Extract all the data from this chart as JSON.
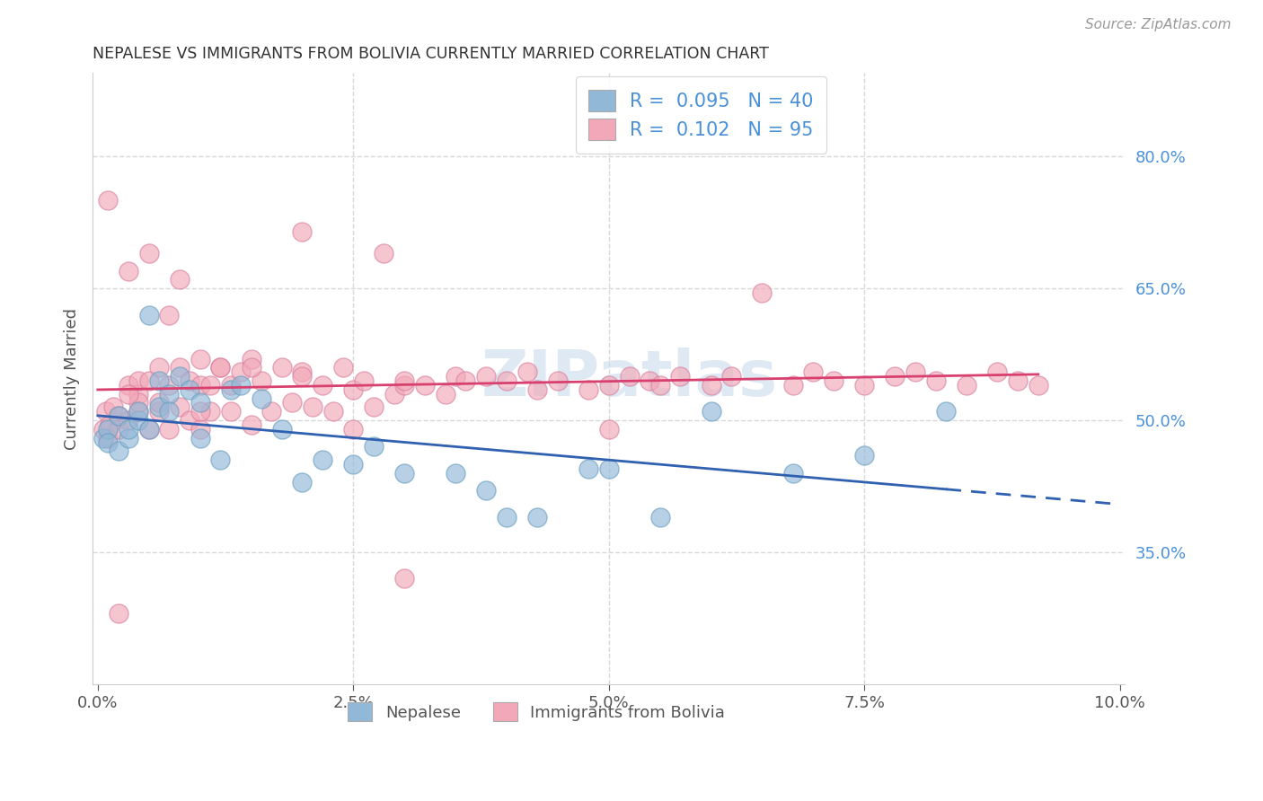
{
  "title": "NEPALESE VS IMMIGRANTS FROM BOLIVIA CURRENTLY MARRIED CORRELATION CHART",
  "source": "Source: ZipAtlas.com",
  "ylabel": "Currently Married",
  "nepalese_color": "#92b8d8",
  "nepalese_edge_color": "#6a9fc0",
  "bolivia_color": "#f2a8b8",
  "bolivia_edge_color": "#d880a0",
  "nepalese_line_color": "#3060b0",
  "bolivia_line_color": "#d84070",
  "label_color": "#4a90d9",
  "text_color": "#555555",
  "title_color": "#333333",
  "grid_color": "#d8d8d8",
  "watermark_color": "#c5d8ea",
  "xmin": -0.0005,
  "xmax": 0.1005,
  "ymin": 0.2,
  "ymax": 0.895,
  "yticks": [
    0.35,
    0.5,
    0.65,
    0.8
  ],
  "yticklabels": [
    "35.0%",
    "50.0%",
    "65.0%",
    "80.0%"
  ],
  "xticks": [
    0.0,
    0.025,
    0.05,
    0.075,
    0.1
  ],
  "xticklabels": [
    "0.0%",
    "2.5%",
    "5.0%",
    "7.5%",
    "10.0%"
  ],
  "nepalese_R": "0.095",
  "nepalese_N": "40",
  "bolivia_R": "0.102",
  "bolivia_N": "95",
  "nepalese_x": [
    0.0005,
    0.0008,
    0.001,
    0.0012,
    0.0015,
    0.002,
    0.002,
    0.003,
    0.003,
    0.004,
    0.004,
    0.005,
    0.005,
    0.006,
    0.006,
    0.007,
    0.008,
    0.008,
    0.009,
    0.01,
    0.01,
    0.011,
    0.012,
    0.013,
    0.015,
    0.016,
    0.018,
    0.02,
    0.022,
    0.025,
    0.028,
    0.035,
    0.04,
    0.045,
    0.05,
    0.055,
    0.06,
    0.065,
    0.075,
    0.083
  ],
  "nepalese_y": [
    0.48,
    0.49,
    0.475,
    0.5,
    0.495,
    0.51,
    0.485,
    0.5,
    0.49,
    0.505,
    0.48,
    0.62,
    0.51,
    0.54,
    0.515,
    0.55,
    0.53,
    0.545,
    0.535,
    0.525,
    0.49,
    0.455,
    0.47,
    0.54,
    0.43,
    0.435,
    0.445,
    0.46,
    0.48,
    0.45,
    0.395,
    0.38,
    0.39,
    0.475,
    0.44,
    0.39,
    0.51,
    0.44,
    0.46,
    0.51
  ],
  "bolivia_x": [
    0.0005,
    0.0008,
    0.001,
    0.001,
    0.0012,
    0.0015,
    0.002,
    0.002,
    0.003,
    0.003,
    0.004,
    0.004,
    0.005,
    0.005,
    0.006,
    0.006,
    0.007,
    0.007,
    0.008,
    0.008,
    0.009,
    0.009,
    0.01,
    0.01,
    0.011,
    0.011,
    0.012,
    0.012,
    0.013,
    0.013,
    0.014,
    0.014,
    0.015,
    0.015,
    0.016,
    0.017,
    0.018,
    0.019,
    0.02,
    0.021,
    0.022,
    0.023,
    0.024,
    0.025,
    0.026,
    0.027,
    0.028,
    0.029,
    0.03,
    0.032,
    0.034,
    0.036,
    0.038,
    0.04,
    0.042,
    0.045,
    0.048,
    0.05,
    0.052,
    0.055,
    0.058,
    0.06,
    0.062,
    0.065,
    0.068,
    0.07,
    0.072,
    0.075,
    0.078,
    0.08,
    0.082,
    0.085,
    0.088,
    0.09,
    0.092,
    0.095,
    0.04,
    0.03,
    0.025,
    0.02,
    0.015,
    0.01,
    0.008,
    0.006,
    0.005,
    0.004,
    0.003,
    0.002,
    0.001,
    0.05,
    0.06,
    0.07,
    0.035,
    0.055,
    0.065
  ],
  "bolivia_y": [
    0.49,
    0.51,
    0.48,
    0.5,
    0.495,
    0.515,
    0.505,
    0.49,
    0.54,
    0.5,
    0.53,
    0.51,
    0.545,
    0.49,
    0.56,
    0.51,
    0.54,
    0.495,
    0.56,
    0.515,
    0.545,
    0.5,
    0.57,
    0.49,
    0.54,
    0.51,
    0.56,
    0.49,
    0.54,
    0.51,
    0.555,
    0.51,
    0.57,
    0.495,
    0.545,
    0.51,
    0.56,
    0.52,
    0.555,
    0.515,
    0.54,
    0.51,
    0.56,
    0.535,
    0.545,
    0.515,
    0.69,
    0.53,
    0.54,
    0.545,
    0.54,
    0.53,
    0.55,
    0.545,
    0.555,
    0.545,
    0.535,
    0.54,
    0.55,
    0.545,
    0.54,
    0.535,
    0.55,
    0.545,
    0.54,
    0.555,
    0.545,
    0.54,
    0.55,
    0.555,
    0.545,
    0.54,
    0.555,
    0.545,
    0.54,
    0.555,
    0.47,
    0.53,
    0.65,
    0.55,
    0.56,
    0.51,
    0.49,
    0.52,
    0.75,
    0.72,
    0.3,
    0.27,
    0.49,
    0.49,
    0.62,
    0.55,
    0.53,
    0.555,
    0.645
  ]
}
